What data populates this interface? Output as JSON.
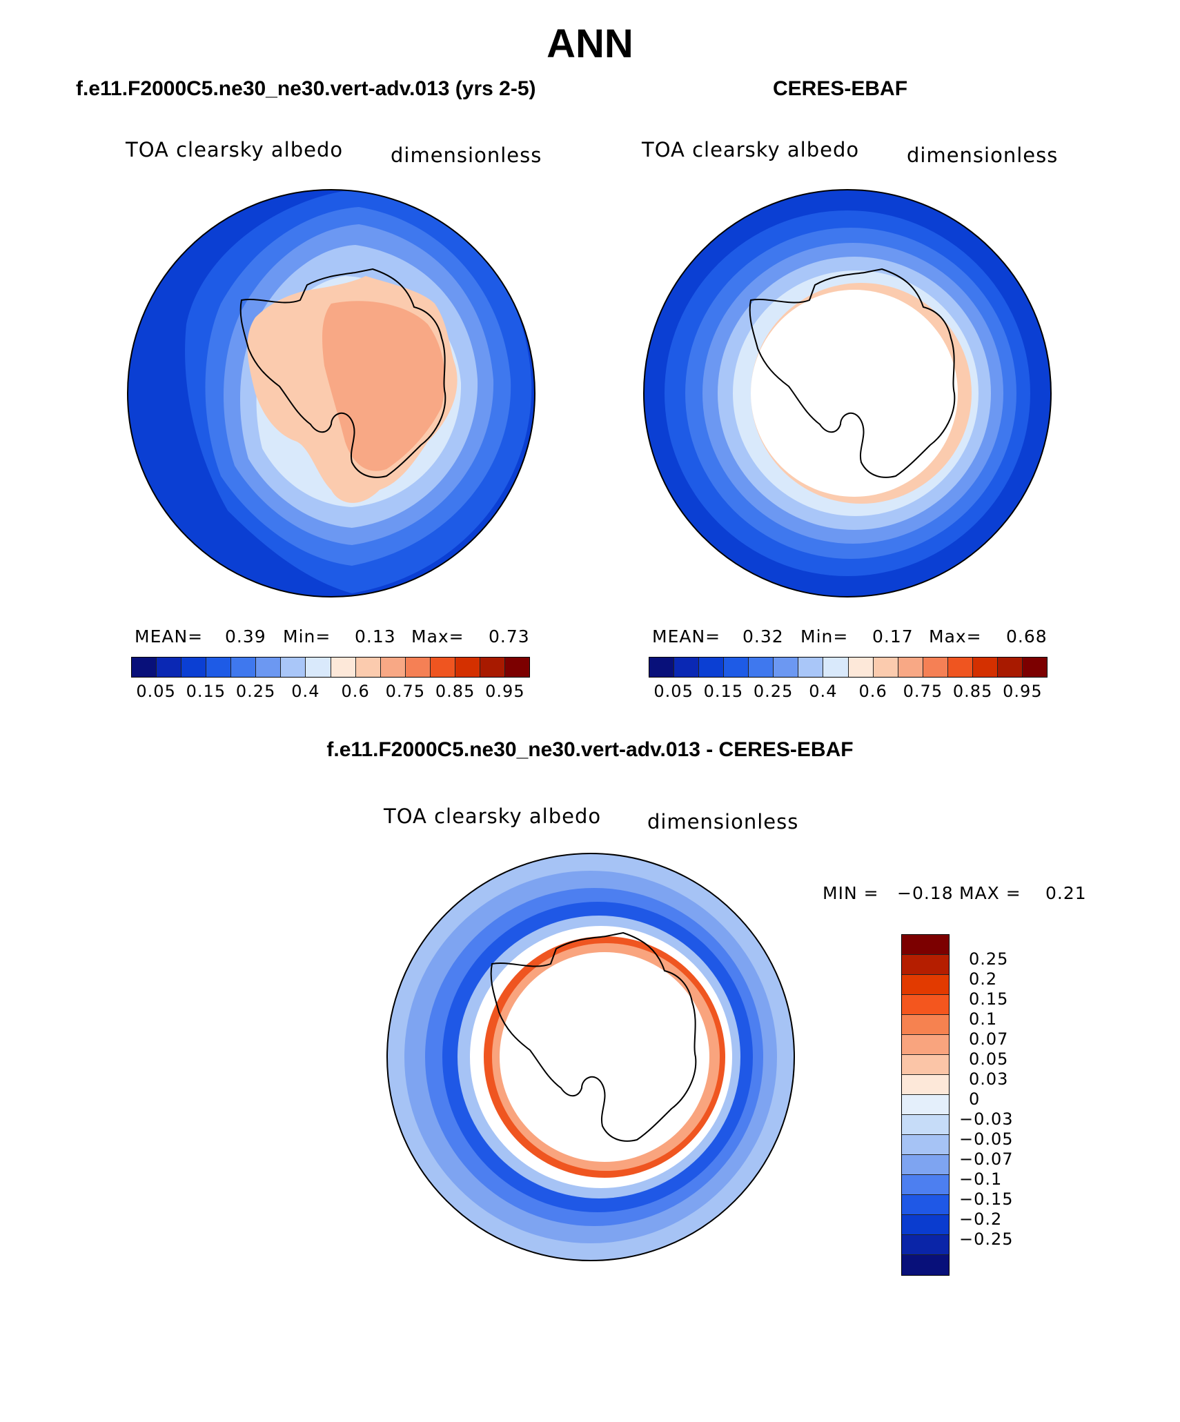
{
  "page": {
    "title": "ANN",
    "left_title": "f.e11.F2000C5.ne30_ne30.vert-adv.013 (yrs 2-5)",
    "right_title": "CERES-EBAF",
    "diff_title": "f.e11.F2000C5.ne30_ne30.vert-adv.013 - CERES-EBAF"
  },
  "panels": {
    "left": {
      "variable": "TOA clearsky albedo",
      "units": "dimensionless",
      "stats": {
        "mean_label": "MEAN=",
        "mean": "0.39",
        "min_label": "Min=",
        "min": "0.13",
        "max_label": "Max=",
        "max": "0.73"
      }
    },
    "right": {
      "variable": "TOA clearsky albedo",
      "units": "dimensionless",
      "stats": {
        "mean_label": "MEAN=",
        "mean": "0.32",
        "min_label": "Min=",
        "min": "0.17",
        "max_label": "Max=",
        "max": "0.68"
      }
    },
    "diff": {
      "variable": "TOA clearsky albedo",
      "units": "dimensionless",
      "stats": {
        "min_label": "MIN =",
        "min": "−0.18",
        "max_label": "MAX =",
        "max": "0.21"
      }
    }
  },
  "colorbars": {
    "abs": {
      "colors": [
        "#08107a",
        "#0a28b4",
        "#0b3fd3",
        "#1e5be6",
        "#3f78ee",
        "#6c98f2",
        "#a9c6f8",
        "#d9e9fb",
        "#fde8d9",
        "#fbcbae",
        "#f8a885",
        "#f58055",
        "#ef5520",
        "#d43000",
        "#a81a00",
        "#7c0000"
      ],
      "tick_labels": [
        "0.05",
        "0.15",
        "0.25",
        "0.4",
        "0.6",
        "0.75",
        "0.85",
        "0.95"
      ]
    },
    "diff": {
      "colors": [
        "#7c0000",
        "#b51e00",
        "#e23a00",
        "#f4561e",
        "#f68250",
        "#f9a47e",
        "#fbc5a7",
        "#fde8d9",
        "#e4effb",
        "#c6dcf8",
        "#a6c3f5",
        "#7ea4f1",
        "#4d7ff0",
        "#1f58e6",
        "#0a3ccf",
        "#0a25a8",
        "#08107a"
      ],
      "tick_labels": [
        "0.25",
        "0.2",
        "0.15",
        "0.1",
        "0.07",
        "0.05",
        "0.03",
        "0",
        "−0.03",
        "−0.05",
        "−0.07",
        "−0.1",
        "−0.15",
        "−0.2",
        "−0.25"
      ]
    }
  }
}
